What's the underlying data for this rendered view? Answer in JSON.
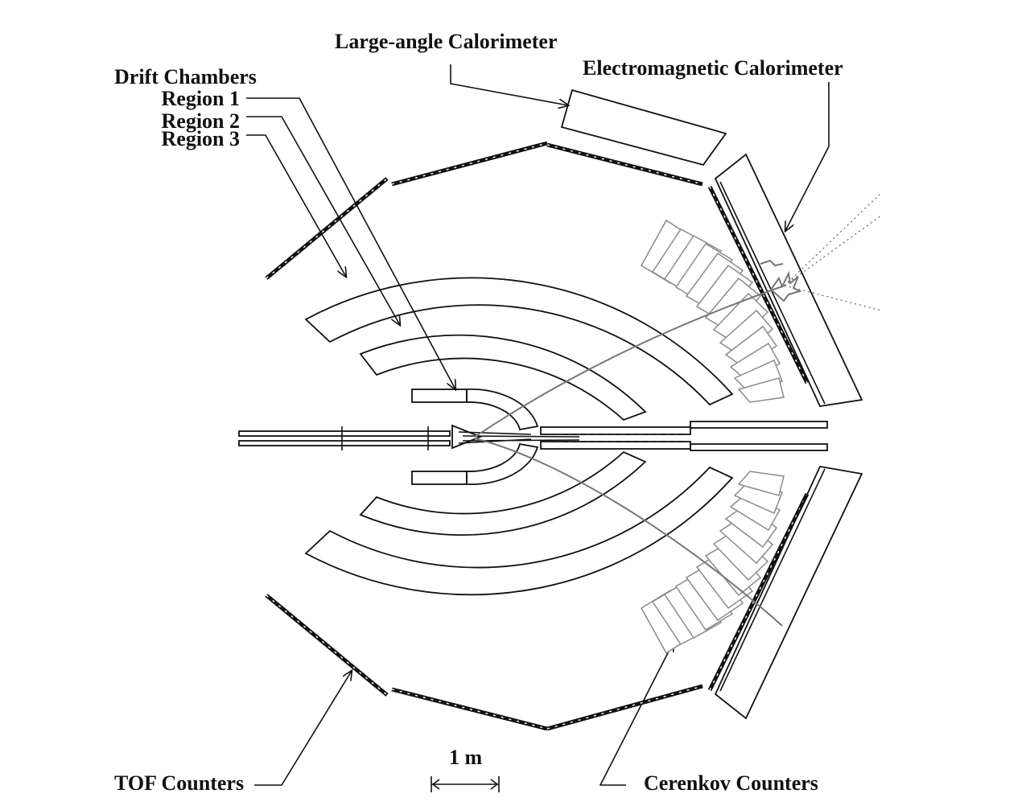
{
  "labels": {
    "large_angle_calorimeter": "Large-angle Calorimeter",
    "electromagnetic_calorimeter": "Electromagnetic Calorimeter",
    "drift_chambers": "Drift Chambers",
    "region_1": "Region 1",
    "region_2": "Region 2",
    "region_3": "Region 3",
    "tof_counters": "TOF Counters",
    "cerenkov_counters": "Cerenkov Counters",
    "scale": "1 m"
  },
  "colors": {
    "ink": "#111111",
    "cerenkov": "#8a8a8a",
    "track": "#777777"
  }
}
